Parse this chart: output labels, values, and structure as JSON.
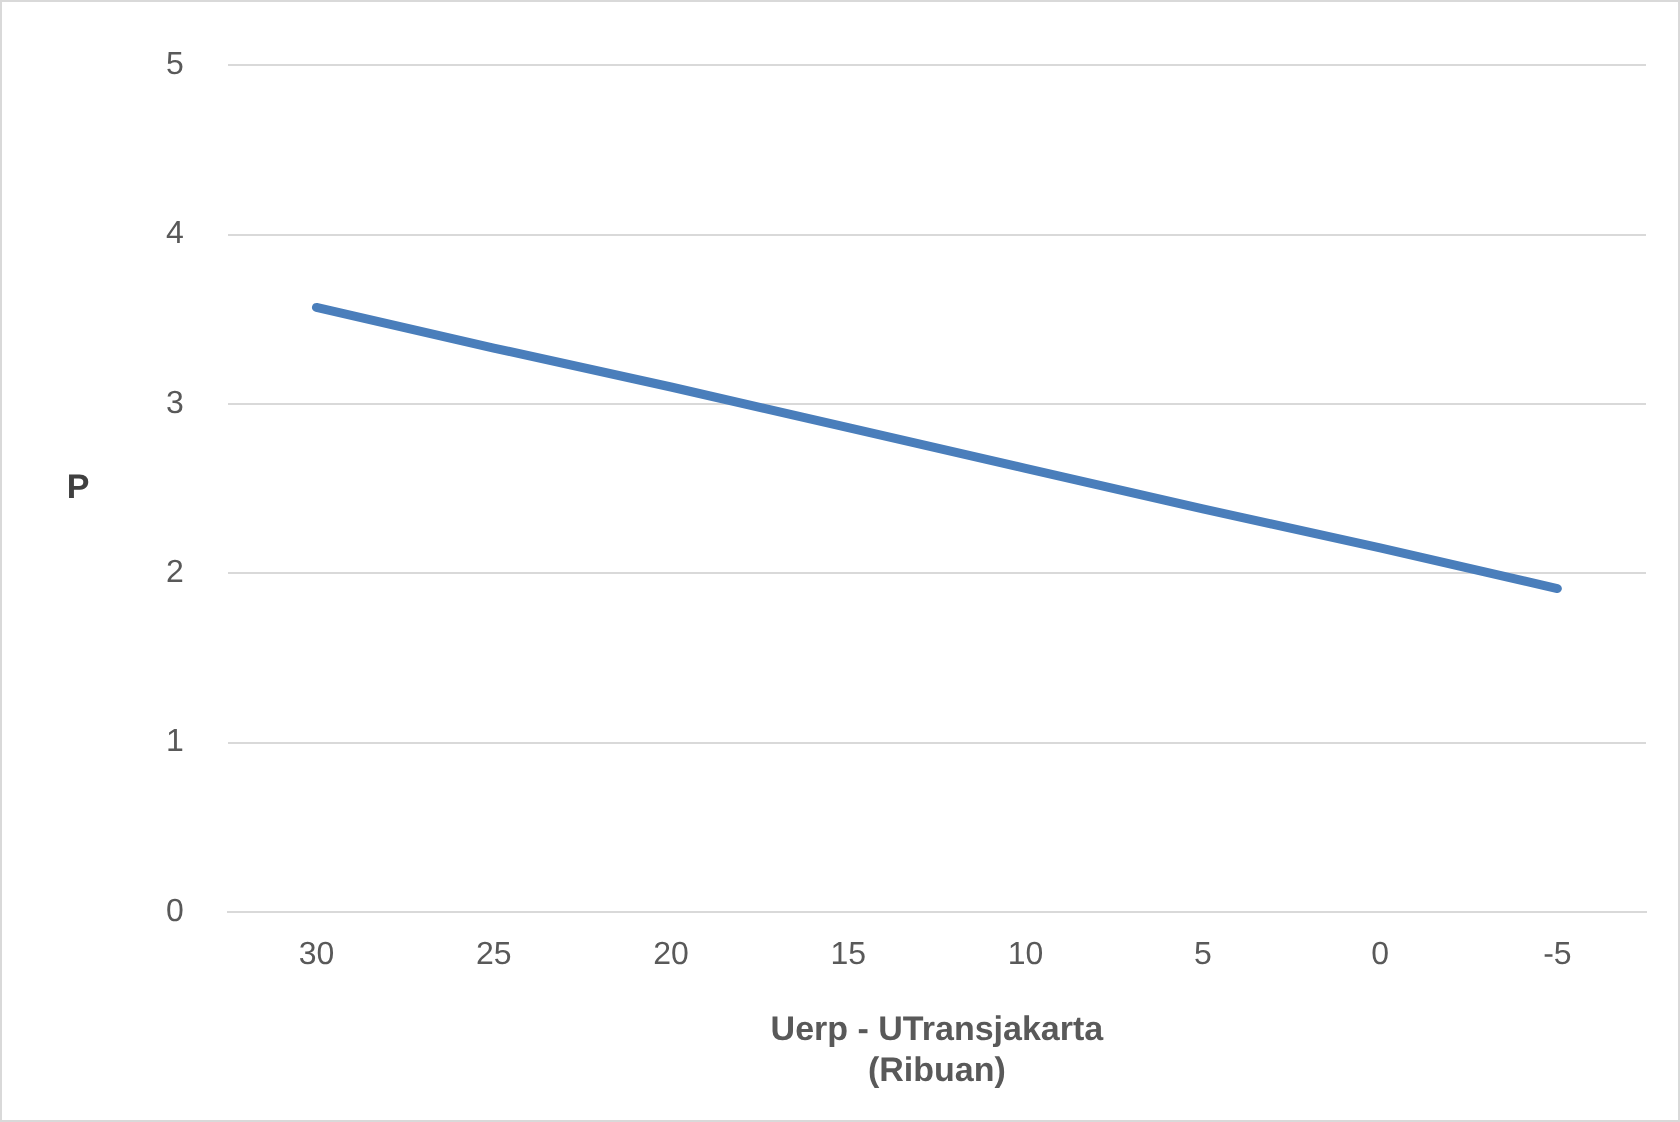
{
  "chart_data": {
    "type": "line",
    "xlabel": "Uerp - UTransjakarta\n(Ribuan)",
    "ylabel": "P",
    "categories": [
      "30",
      "25",
      "20",
      "15",
      "10",
      "5",
      "0",
      "-5"
    ],
    "series": [
      {
        "color": "#4a7ebb",
        "values": [
          3.57,
          3.33,
          3.1,
          2.86,
          2.62,
          2.38,
          2.15,
          1.91
        ]
      }
    ],
    "ylim": [
      0,
      5
    ],
    "yticks": [
      0,
      1,
      2,
      3,
      4,
      5
    ],
    "grid": "y",
    "legend": false,
    "marker": "none",
    "line_style": "solid"
  }
}
